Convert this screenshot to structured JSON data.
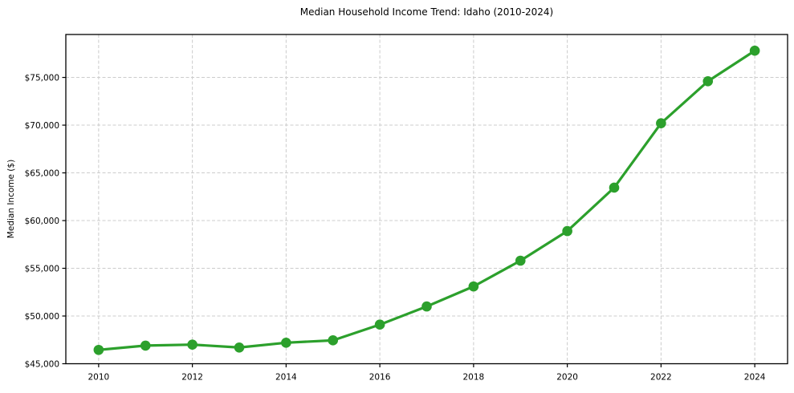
{
  "chart_data": {
    "type": "line",
    "title": "Median Household Income Trend: Idaho (2010-2024)",
    "xlabel": "",
    "ylabel": "Median Income ($)",
    "x": [
      2010,
      2011,
      2012,
      2013,
      2014,
      2015,
      2016,
      2017,
      2018,
      2019,
      2020,
      2021,
      2022,
      2023,
      2024
    ],
    "values": [
      46450,
      46900,
      47000,
      46700,
      47200,
      47450,
      49100,
      51000,
      53100,
      55800,
      58900,
      63450,
      70200,
      74600,
      77800
    ],
    "x_ticks": [
      2010,
      2012,
      2014,
      2016,
      2018,
      2020,
      2022,
      2024
    ],
    "x_tick_labels": [
      "2010",
      "2012",
      "2014",
      "2016",
      "2018",
      "2020",
      "2022",
      "2024"
    ],
    "y_ticks": [
      45000,
      50000,
      55000,
      60000,
      65000,
      70000,
      75000
    ],
    "y_tick_labels": [
      "$45,000",
      "$50,000",
      "$55,000",
      "$60,000",
      "$65,000",
      "$70,000",
      "$75,000"
    ],
    "xlim": [
      2009.3,
      2024.7
    ],
    "ylim": [
      45000,
      79500
    ],
    "grid": true,
    "grid_style": "dashed",
    "legend": "none",
    "marker": "circle",
    "colors": {
      "line": "#2ca02c",
      "marker": "#2ca02c",
      "grid": "#cccccc",
      "axis": "#000000",
      "text": "#000000",
      "background": "#ffffff"
    }
  }
}
